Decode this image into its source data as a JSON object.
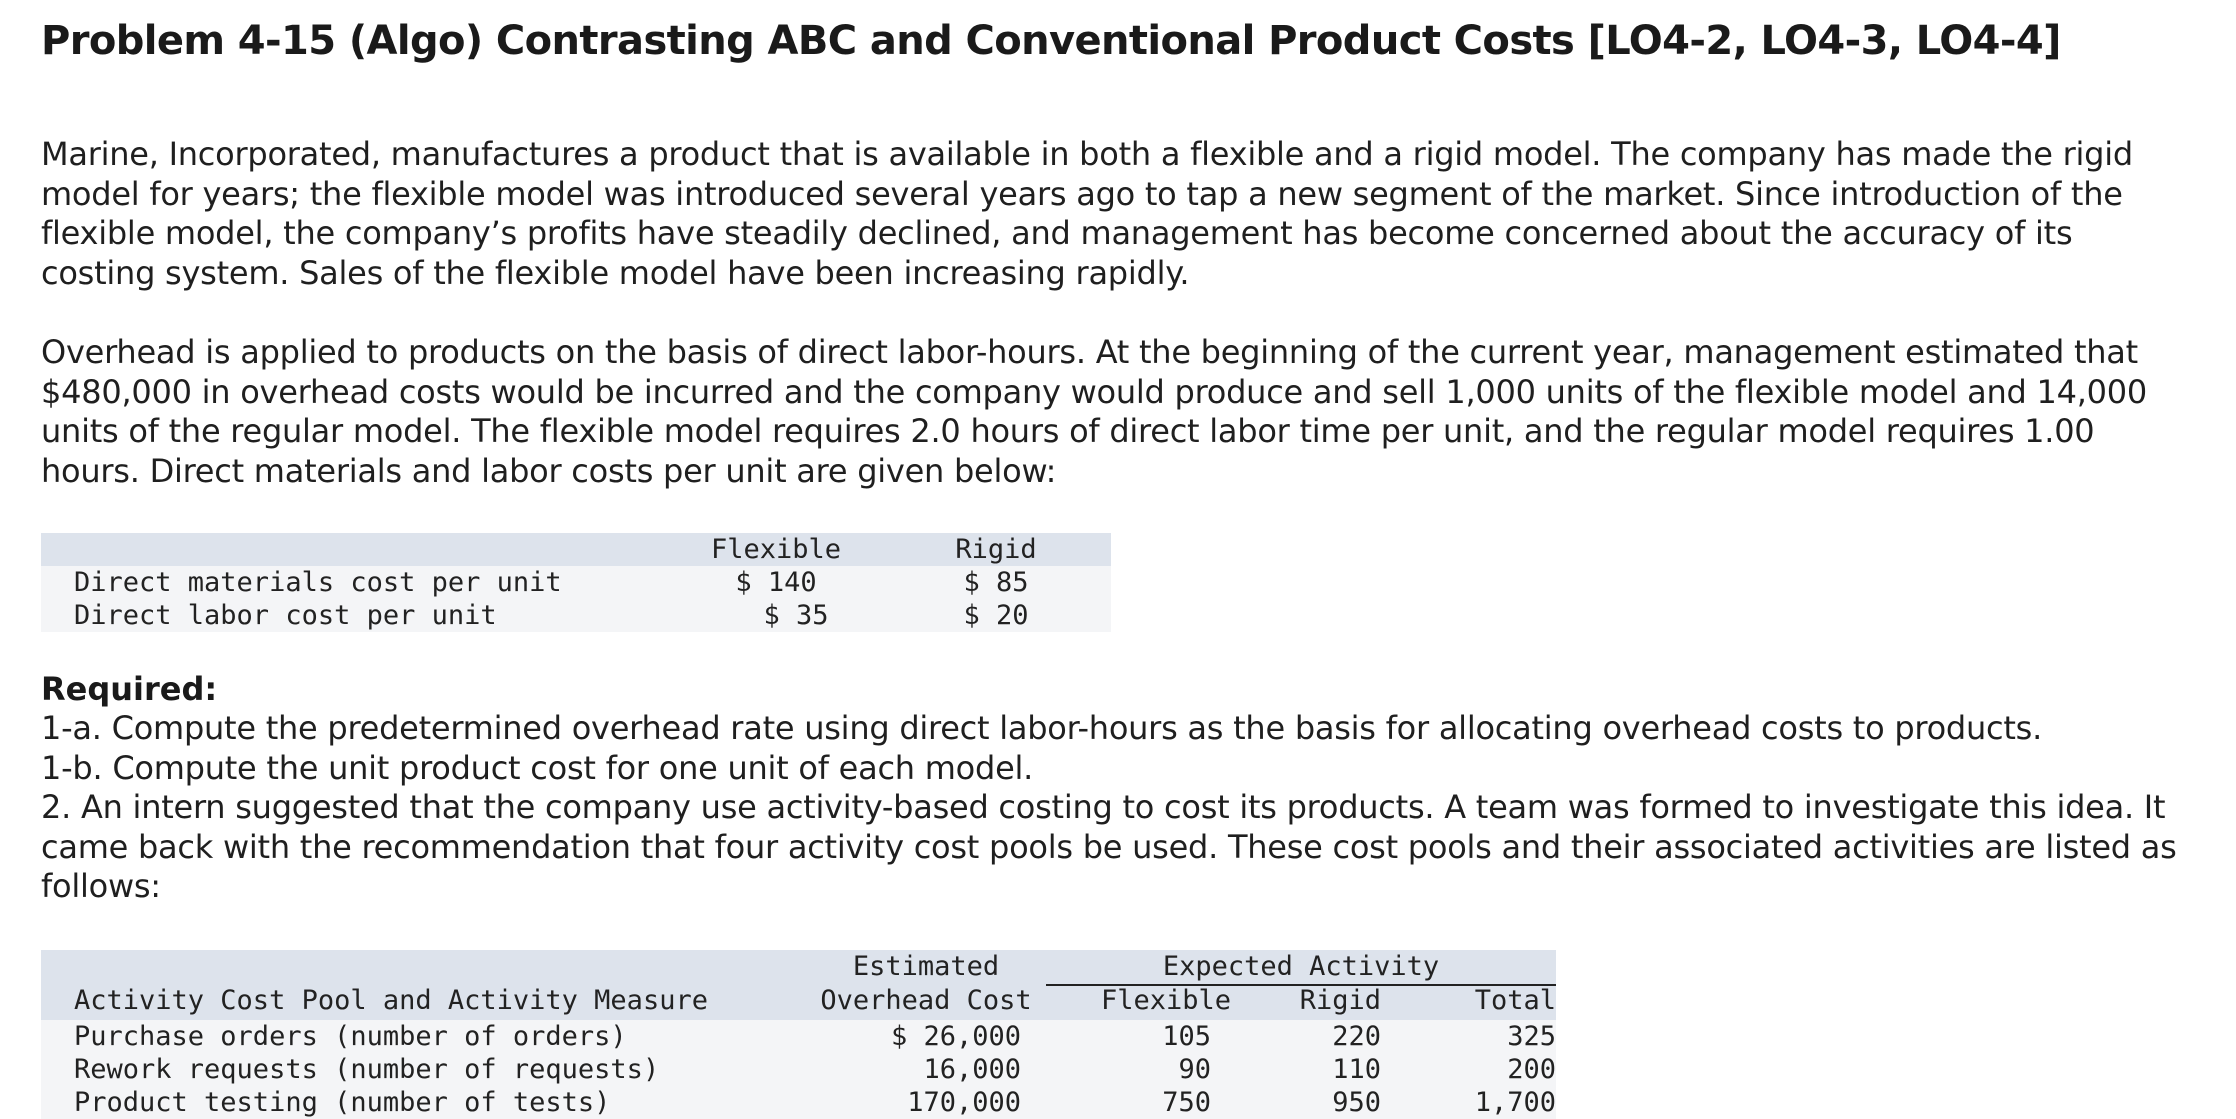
{
  "title": "Problem 4-15 (Algo) Contrasting ABC and Conventional Product Costs [LO4-2, LO4-3, LO4-4]",
  "paragraph1": [
    "Marine, Incorporated, manufactures a product that is available in both a flexible and a rigid model. The company has made the rigid",
    "model for years; the flexible model was introduced several years ago to tap a new segment of the market. Since introduction of the",
    "flexible model, the company’s profits have steadily declined, and management has become concerned about the accuracy of its",
    "costing system. Sales of the flexible model have been increasing rapidly."
  ],
  "paragraph2": [
    "Overhead is applied to products on the basis of direct labor-hours. At the beginning of the current year, management estimated that",
    "$480,000 in overhead costs would be incurred and the company would produce and sell 1,000 units of the flexible model and 14,000",
    "units of the regular model. The flexible model requires 2.0 hours of direct labor time per unit, and the regular model requires 1.00",
    "hours. Direct materials and labor costs per unit are given below:"
  ],
  "cost_table": {
    "headers": [
      "Flexible",
      "Rigid"
    ],
    "rows": [
      {
        "label": "Direct materials cost per unit",
        "flexible": "$ 140",
        "rigid": "$ 85"
      },
      {
        "label": "Direct labor cost per unit",
        "flexible": "$ 35",
        "rigid": "$ 20"
      }
    ]
  },
  "required": {
    "heading": "Required:",
    "lines": [
      "1-a. Compute the predetermined overhead rate using direct labor-hours as the basis for allocating overhead costs to products.",
      "1-b. Compute the unit product cost for one unit of each model.",
      "2. An intern suggested that the company use activity-based costing to cost its products. A team was formed to investigate this idea. It",
      "came back with the recommendation that four activity cost pools be used. These cost pools and their associated activities are listed as",
      "follows:"
    ]
  },
  "activity_table": {
    "header_top": {
      "estimated": "Estimated",
      "expected": "Expected Activity"
    },
    "header_bottom": {
      "pool": "Activity Cost Pool and Activity Measure",
      "overhead": "Overhead Cost",
      "flexible": "Flexible",
      "rigid": "Rigid",
      "total": "Total"
    },
    "rows": [
      {
        "pool": "Purchase orders (number of orders)",
        "overhead": "$ 26,000",
        "flexible": "105",
        "rigid": "220",
        "total": "325"
      },
      {
        "pool": "Rework requests (number of requests)",
        "overhead": "16,000",
        "flexible": "90",
        "rigid": "110",
        "total": "200"
      },
      {
        "pool": "Product testing (number of tests)",
        "overhead": "170,000",
        "flexible": "750",
        "rigid": "950",
        "total": "1,700"
      }
    ]
  }
}
